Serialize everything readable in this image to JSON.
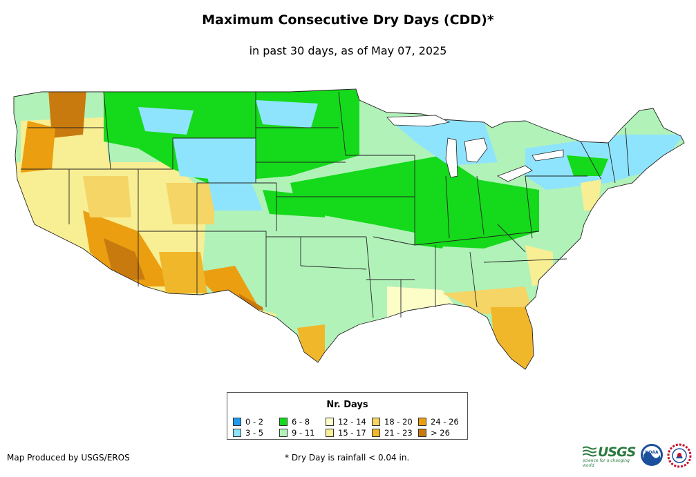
{
  "title": "Maximum Consecutive Dry Days (CDD)*",
  "subtitle": "in past 30 days, as of May 07, 2025",
  "legend": {
    "title": "Nr. Days",
    "items": [
      {
        "label": "0 - 2",
        "color": "#1f9cf0"
      },
      {
        "label": "6 - 8",
        "color": "#15d91b"
      },
      {
        "label": "12 - 14",
        "color": "#fdfdc8"
      },
      {
        "label": "18 - 20",
        "color": "#f4d565"
      },
      {
        "label": "24 - 26",
        "color": "#ea9e10"
      },
      {
        "label": "3 - 5",
        "color": "#8fe4fd"
      },
      {
        "label": "9 - 11",
        "color": "#b1f2b9"
      },
      {
        "label": "15 - 17",
        "color": "#f8ee93"
      },
      {
        "label": "21 - 23",
        "color": "#f1b72b"
      },
      {
        "label": "> 26",
        "color": "#c97a0e"
      }
    ]
  },
  "footer": {
    "produced_by": "Map Produced by USGS/EROS",
    "note": "* Dry Day is rainfall < 0.04 in."
  },
  "logos": {
    "usgs_text": "USGS",
    "usgs_tagline": "science for a changing world",
    "noaa_text": "NOAA"
  }
}
